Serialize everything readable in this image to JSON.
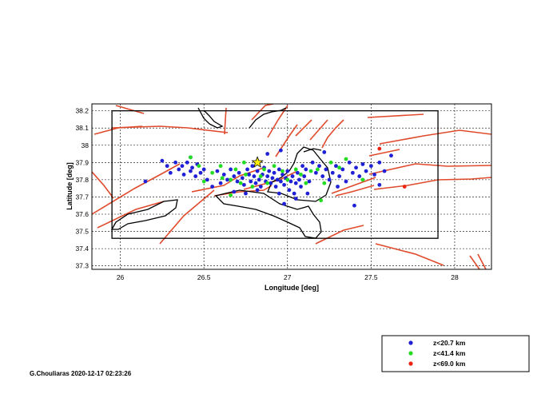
{
  "chart_data": {
    "type": "scatter",
    "xlabel": "Longitude [deg]",
    "ylabel": "Latitude [deg]",
    "xlim": [
      25.83,
      28.22
    ],
    "ylim": [
      37.28,
      38.24
    ],
    "x_ticks": [
      26,
      26.5,
      27,
      27.5,
      28
    ],
    "x_tick_labels": [
      "26",
      "26.5",
      "27",
      "27.5",
      "28"
    ],
    "y_ticks": [
      37.3,
      37.4,
      37.5,
      37.6,
      37.7,
      37.8,
      37.9,
      38,
      38.1,
      38.2
    ],
    "y_tick_labels": [
      "37.3",
      "37.4",
      "37.5",
      "37.6",
      "37.7",
      "37.8",
      "37.9",
      "38",
      "38.1",
      "38.2"
    ],
    "grid": true,
    "legend_position": "below-right",
    "mainshock": {
      "lon": 26.82,
      "lat": 37.9
    },
    "study_area": {
      "lon_min": 25.95,
      "lon_max": 27.9,
      "lat_min": 37.46,
      "lat_max": 38.2
    },
    "series": [
      {
        "name": "z<20.7 km",
        "color": "#1f1fd6",
        "points": [
          [
            26.25,
            37.91
          ],
          [
            26.28,
            37.88
          ],
          [
            26.3,
            37.84
          ],
          [
            26.33,
            37.9
          ],
          [
            26.35,
            37.86
          ],
          [
            26.37,
            37.88
          ],
          [
            26.38,
            37.83
          ],
          [
            26.4,
            37.9
          ],
          [
            26.42,
            37.85
          ],
          [
            26.43,
            37.87
          ],
          [
            26.45,
            37.82
          ],
          [
            26.46,
            37.89
          ],
          [
            26.48,
            37.84
          ],
          [
            26.5,
            37.86
          ],
          [
            26.52,
            37.8
          ],
          [
            26.55,
            37.76
          ],
          [
            26.58,
            37.85
          ],
          [
            26.6,
            37.78
          ],
          [
            26.62,
            37.83
          ],
          [
            26.64,
            37.8
          ],
          [
            26.66,
            37.86
          ],
          [
            26.68,
            37.82
          ],
          [
            26.7,
            37.79
          ],
          [
            26.71,
            37.84
          ],
          [
            26.73,
            37.81
          ],
          [
            26.74,
            37.77
          ],
          [
            26.76,
            37.86
          ],
          [
            26.77,
            37.83
          ],
          [
            26.78,
            37.79
          ],
          [
            26.79,
            37.88
          ],
          [
            26.8,
            37.82
          ],
          [
            26.81,
            37.78
          ],
          [
            26.82,
            37.85
          ],
          [
            26.83,
            37.8
          ],
          [
            26.84,
            37.76
          ],
          [
            26.85,
            37.83
          ],
          [
            26.86,
            37.87
          ],
          [
            26.87,
            37.79
          ],
          [
            26.88,
            37.82
          ],
          [
            26.89,
            37.85
          ],
          [
            26.9,
            37.78
          ],
          [
            26.91,
            37.81
          ],
          [
            26.92,
            37.84
          ],
          [
            26.93,
            37.76
          ],
          [
            26.94,
            37.8
          ],
          [
            26.95,
            37.86
          ],
          [
            26.96,
            37.79
          ],
          [
            26.97,
            37.83
          ],
          [
            26.98,
            37.77
          ],
          [
            26.99,
            37.81
          ],
          [
            27.0,
            37.85
          ],
          [
            27.01,
            37.74
          ],
          [
            27.02,
            37.79
          ],
          [
            27.03,
            37.82
          ],
          [
            27.04,
            37.72
          ],
          [
            27.05,
            37.78
          ],
          [
            27.06,
            37.84
          ],
          [
            27.07,
            37.8
          ],
          [
            27.08,
            37.76
          ],
          [
            27.09,
            37.88
          ],
          [
            27.1,
            37.82
          ],
          [
            27.11,
            37.86
          ],
          [
            27.13,
            37.79
          ],
          [
            27.15,
            37.9
          ],
          [
            27.17,
            37.84
          ],
          [
            27.19,
            37.88
          ],
          [
            27.21,
            37.82
          ],
          [
            27.23,
            37.86
          ],
          [
            27.25,
            37.8
          ],
          [
            27.27,
            37.84
          ],
          [
            27.29,
            37.88
          ],
          [
            27.31,
            37.82
          ],
          [
            27.33,
            37.86
          ],
          [
            27.35,
            37.79
          ],
          [
            27.37,
            37.9
          ],
          [
            27.39,
            37.84
          ],
          [
            27.41,
            37.87
          ],
          [
            27.43,
            37.82
          ],
          [
            27.45,
            37.89
          ],
          [
            27.47,
            37.85
          ],
          [
            27.5,
            37.88
          ],
          [
            27.52,
            37.83
          ],
          [
            27.55,
            37.9
          ],
          [
            27.58,
            37.85
          ],
          [
            27.62,
            37.94
          ],
          [
            26.15,
            37.79
          ],
          [
            26.42,
            37.93
          ],
          [
            26.95,
            37.72
          ],
          [
            26.98,
            37.66
          ],
          [
            27.05,
            37.69
          ],
          [
            27.4,
            37.65
          ],
          [
            27.3,
            37.76
          ],
          [
            26.88,
            37.95
          ],
          [
            26.96,
            37.97
          ],
          [
            27.22,
            37.96
          ],
          [
            26.82,
            37.74
          ],
          [
            26.75,
            37.72
          ],
          [
            26.68,
            37.73
          ],
          [
            27.12,
            37.72
          ],
          [
            27.55,
            37.77
          ]
        ]
      },
      {
        "name": "z<41.4 km",
        "color": "#22dd22",
        "points": [
          [
            26.42,
            37.93
          ],
          [
            26.47,
            37.88
          ],
          [
            26.5,
            37.79
          ],
          [
            26.55,
            37.84
          ],
          [
            26.61,
            37.81
          ],
          [
            26.66,
            37.8
          ],
          [
            26.69,
            37.86
          ],
          [
            26.72,
            37.78
          ],
          [
            26.75,
            37.83
          ],
          [
            26.79,
            37.76
          ],
          [
            26.84,
            37.82
          ],
          [
            26.88,
            37.78
          ],
          [
            26.92,
            37.88
          ],
          [
            26.97,
            37.85
          ],
          [
            27.0,
            37.8
          ],
          [
            27.05,
            37.86
          ],
          [
            27.08,
            37.83
          ],
          [
            27.11,
            37.78
          ],
          [
            27.14,
            37.85
          ],
          [
            27.18,
            37.86
          ],
          [
            27.2,
            37.68
          ],
          [
            27.26,
            37.9
          ],
          [
            27.31,
            37.87
          ],
          [
            27.35,
            37.92
          ],
          [
            27.45,
            37.8
          ],
          [
            26.6,
            37.88
          ],
          [
            26.86,
            37.86
          ],
          [
            26.74,
            37.9
          ],
          [
            27.22,
            37.78
          ],
          [
            26.66,
            37.71
          ]
        ]
      },
      {
        "name": "z<69.0 km",
        "color": "#ee2211",
        "points": [
          [
            27.55,
            37.98
          ],
          [
            27.7,
            37.76
          ]
        ]
      }
    ]
  },
  "legend": {
    "items": [
      {
        "label": "z<20.7 km",
        "color": "#1f1fd6"
      },
      {
        "label": "z<41.4 km",
        "color": "#22dd22"
      },
      {
        "label": "z<69.0 km",
        "color": "#ee2211"
      }
    ]
  },
  "footer": {
    "text": "G.Chouliaras 2020-12-17 02:23:26"
  },
  "colors": {
    "fault": "#e04a2c",
    "coast": "#000000",
    "grid": "#000000"
  }
}
